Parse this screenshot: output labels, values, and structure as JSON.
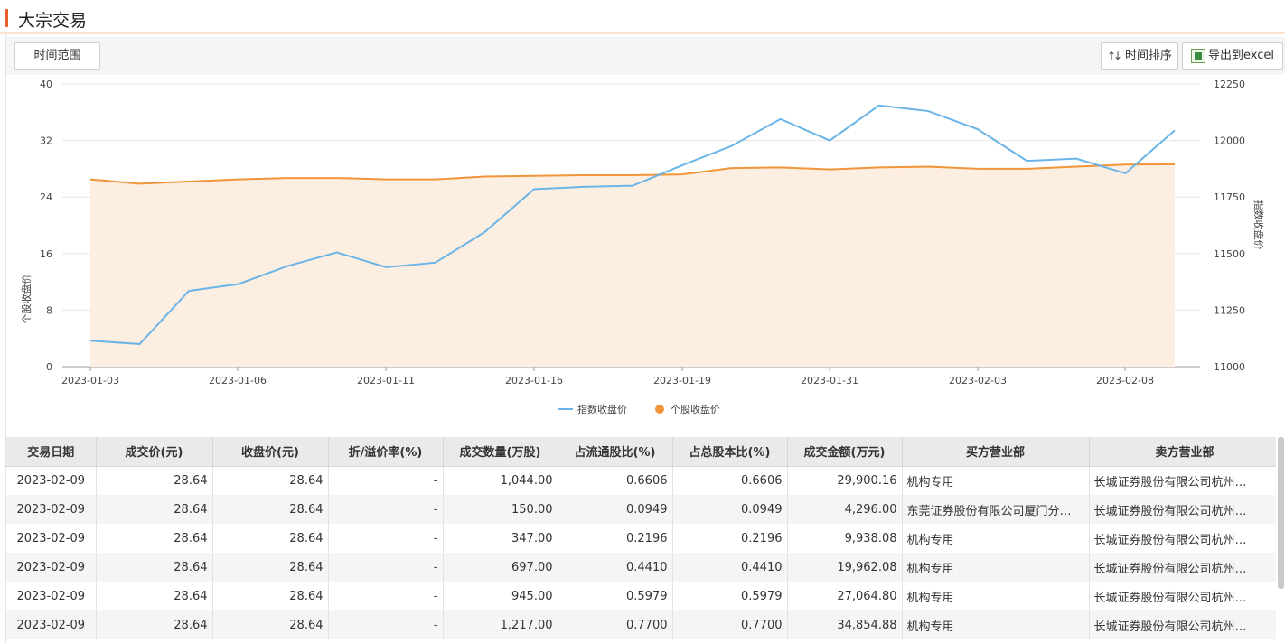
{
  "page": {
    "title": "大宗交易"
  },
  "toolbar": {
    "range_label": "时间范围",
    "sort_label": "时间排序",
    "export_label": "导出到excel",
    "sort_icon": "sort-arrows-icon",
    "export_icon": "excel-icon"
  },
  "colors": {
    "accent": "#e8602c",
    "index_line": "#6ab4e6",
    "stock_line": "#f0953a",
    "stock_fill": "#fdeee2"
  },
  "chart_data": {
    "type": "line",
    "x": [
      "2023-01-03",
      "2023-01-04",
      "2023-01-05",
      "2023-01-06",
      "2023-01-09",
      "2023-01-10",
      "2023-01-11",
      "2023-01-12",
      "2023-01-13",
      "2023-01-16",
      "2023-01-17",
      "2023-01-18",
      "2023-01-19",
      "2023-01-20",
      "2023-01-30",
      "2023-01-31",
      "2023-02-01",
      "2023-02-02",
      "2023-02-03",
      "2023-02-06",
      "2023-02-07",
      "2023-02-08",
      "2023-02-09"
    ],
    "x_tick_labels": [
      "2023-01-03",
      "2023-01-06",
      "2023-01-11",
      "2023-01-16",
      "2023-01-19",
      "2023-01-31",
      "2023-02-03",
      "2023-02-08"
    ],
    "series": [
      {
        "name": "个股收盘价",
        "axis": "left",
        "values": [
          26.5,
          25.9,
          26.2,
          26.5,
          26.7,
          26.7,
          26.5,
          26.5,
          26.9,
          27.0,
          27.1,
          27.1,
          27.2,
          28.1,
          28.2,
          27.9,
          28.2,
          28.3,
          28.0,
          28.0,
          28.3,
          28.6,
          28.64
        ]
      },
      {
        "name": "指数收盘价",
        "axis": "right",
        "values": [
          11115,
          11100,
          11335,
          11365,
          11445,
          11505,
          11440,
          11460,
          11595,
          11785,
          11795,
          11800,
          11890,
          11975,
          12095,
          12000,
          12155,
          12130,
          12050,
          11910,
          11920,
          11855,
          12045
        ]
      }
    ],
    "ylabel": "个股收盘价",
    "ylabel_right": "指数收盘价",
    "ylim": [
      0,
      40
    ],
    "ylim_right": [
      11000,
      12250
    ],
    "y_ticks": [
      0,
      8,
      16,
      24,
      32,
      40
    ],
    "y_ticks_right": [
      11000,
      11250,
      11500,
      11750,
      12000,
      12250
    ],
    "grid": true,
    "legend": "bottom-center",
    "legend_entries": [
      "指数收盘价",
      "个股收盘价"
    ]
  },
  "table": {
    "columns": [
      "交易日期",
      "成交价(元)",
      "收盘价(元)",
      "折/溢价率(%)",
      "成交数量(万股)",
      "占流通股比(%)",
      "占总股本比(%)",
      "成交金额(万元)",
      "买方营业部",
      "卖方营业部"
    ],
    "rows": [
      [
        "2023-02-09",
        "28.64",
        "28.64",
        "-",
        "1,044.00",
        "0.6606",
        "0.6606",
        "29,900.16",
        "机构专用",
        "长城证券股份有限公司杭州…"
      ],
      [
        "2023-02-09",
        "28.64",
        "28.64",
        "-",
        "150.00",
        "0.0949",
        "0.0949",
        "4,296.00",
        "东莞证券股份有限公司厦门分…",
        "长城证券股份有限公司杭州…"
      ],
      [
        "2023-02-09",
        "28.64",
        "28.64",
        "-",
        "347.00",
        "0.2196",
        "0.2196",
        "9,938.08",
        "机构专用",
        "长城证券股份有限公司杭州…"
      ],
      [
        "2023-02-09",
        "28.64",
        "28.64",
        "-",
        "697.00",
        "0.4410",
        "0.4410",
        "19,962.08",
        "机构专用",
        "长城证券股份有限公司杭州…"
      ],
      [
        "2023-02-09",
        "28.64",
        "28.64",
        "-",
        "945.00",
        "0.5979",
        "0.5979",
        "27,064.80",
        "机构专用",
        "长城证券股份有限公司杭州…"
      ],
      [
        "2023-02-09",
        "28.64",
        "28.64",
        "-",
        "1,217.00",
        "0.7700",
        "0.7700",
        "34,854.88",
        "机构专用",
        "长城证券股份有限公司杭州…"
      ]
    ]
  }
}
